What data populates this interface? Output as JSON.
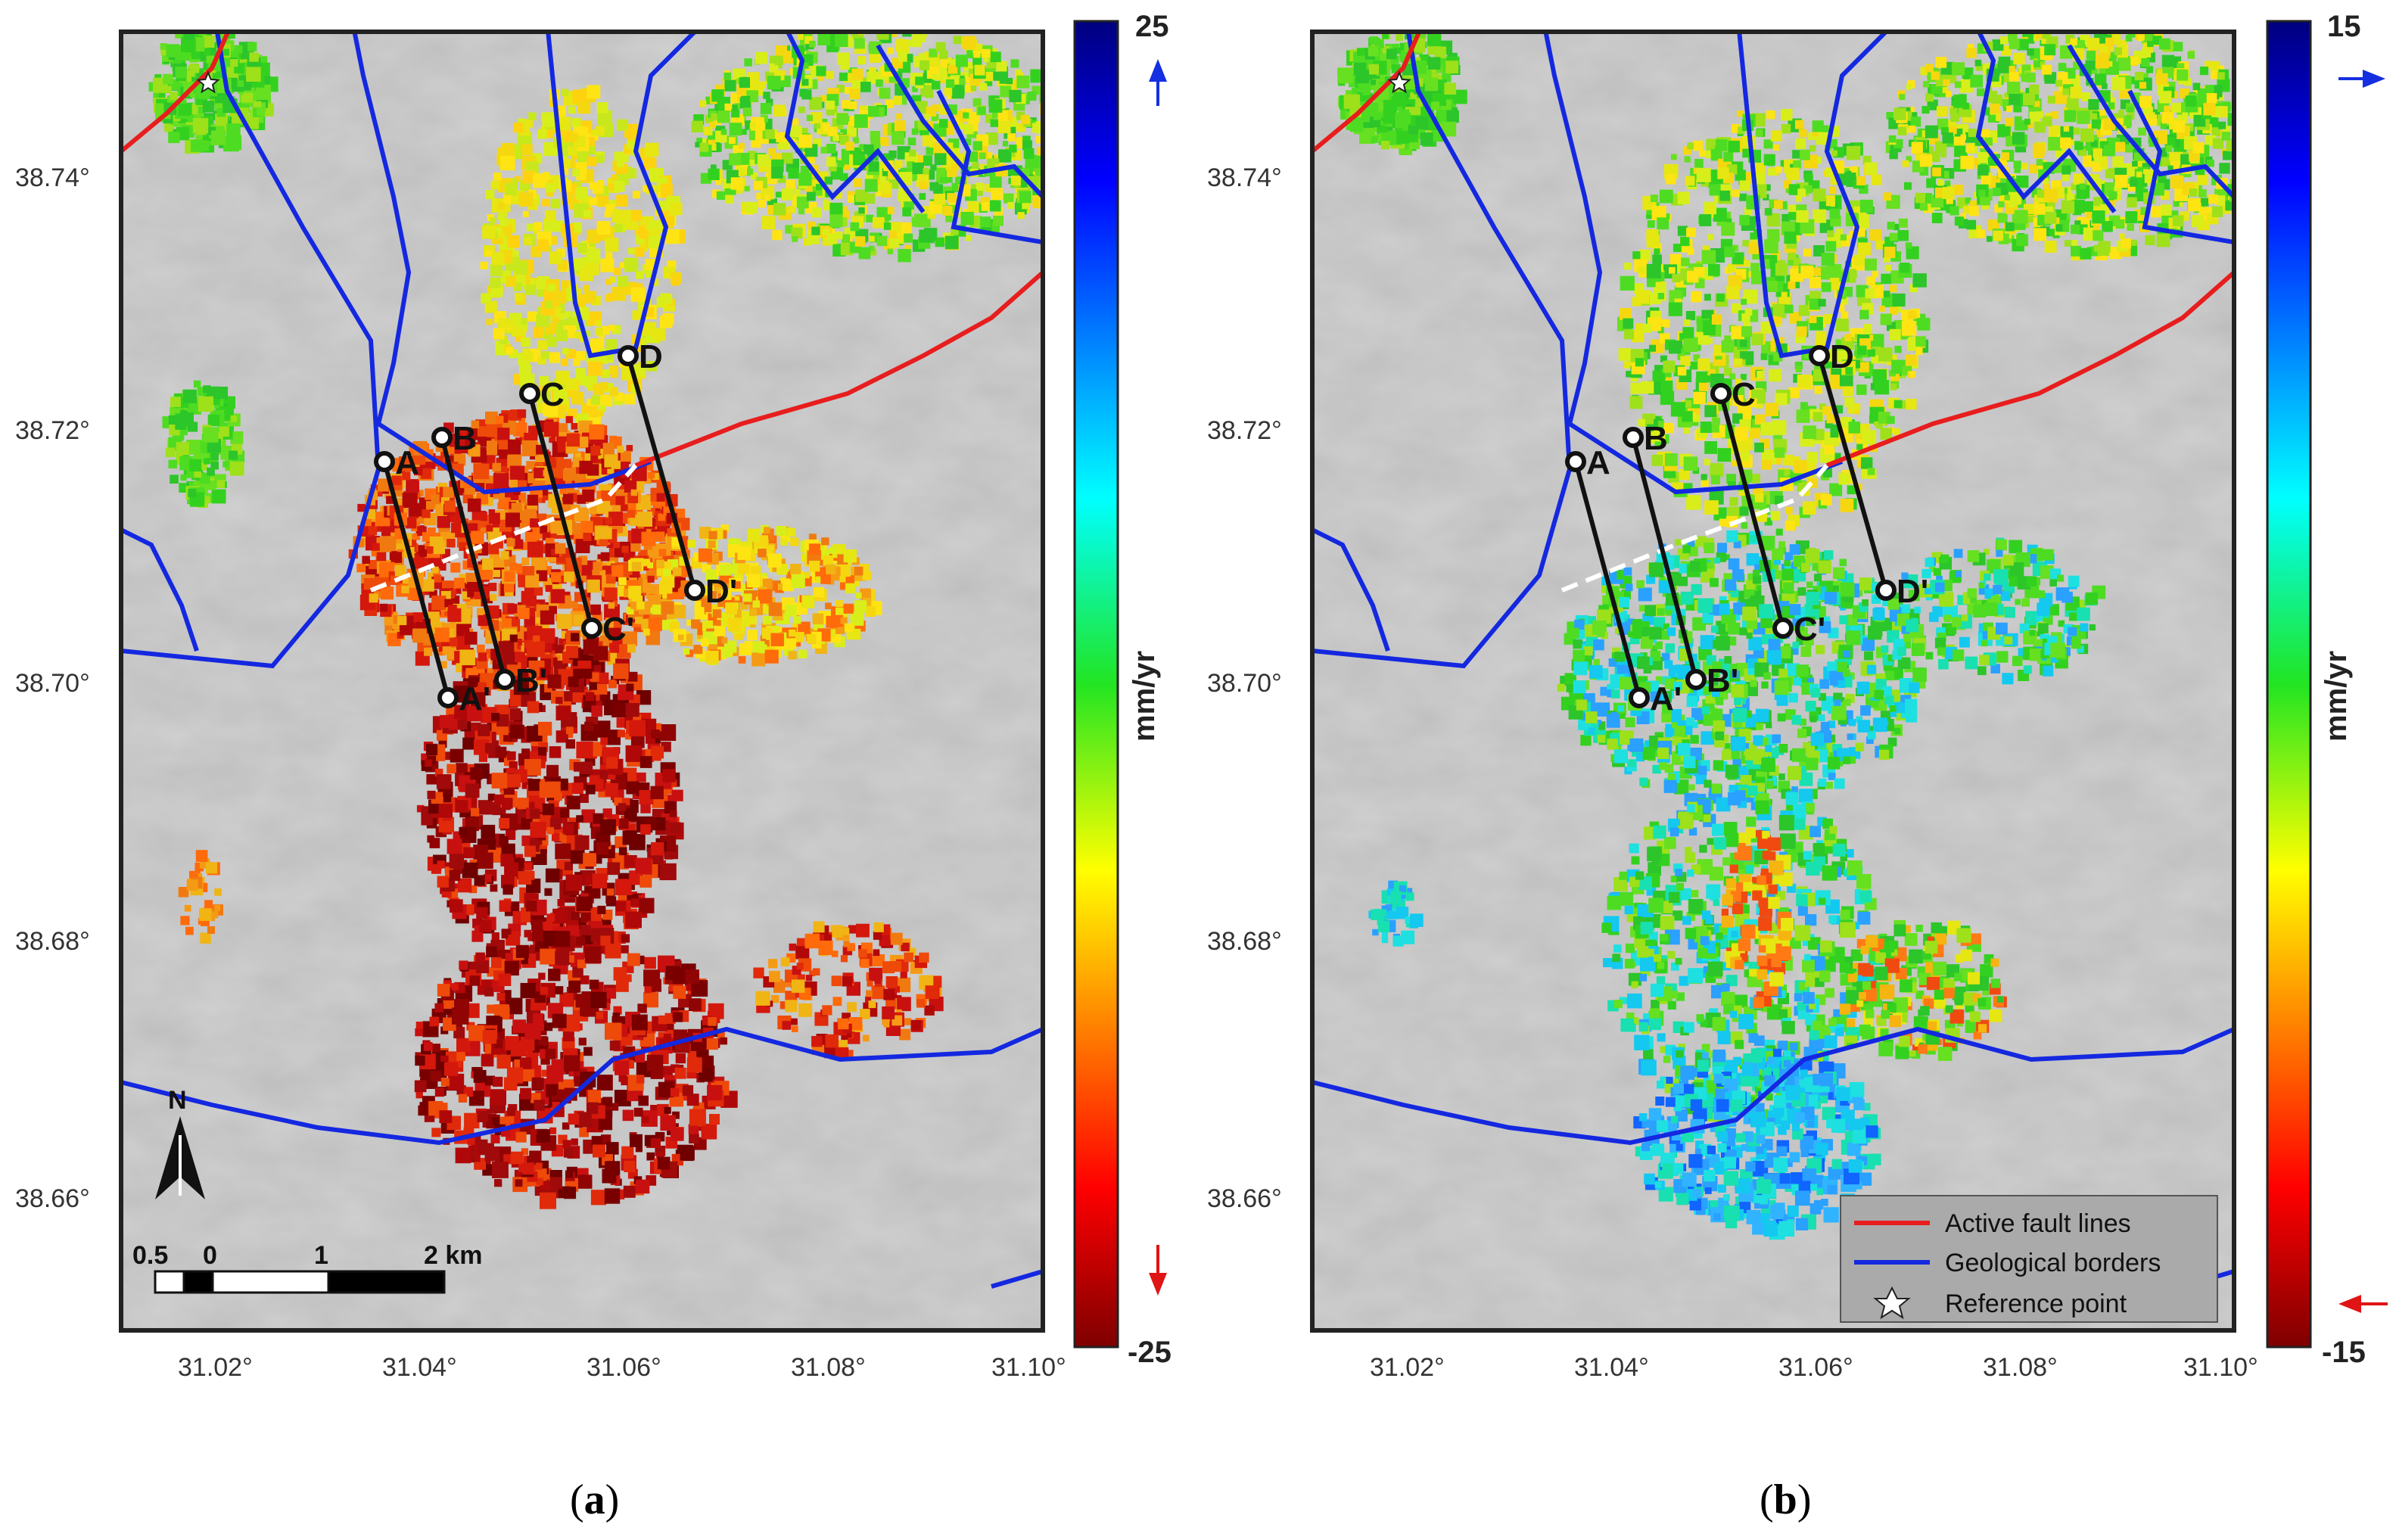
{
  "panels": [
    {
      "id": "a",
      "label_open": "(",
      "label_letter": "a",
      "label_close": ")",
      "colorbar": {
        "max_label": "25",
        "min_label": "-25",
        "unit": "mm/yr",
        "top_arrow_color": "#1430e0",
        "bottom_arrow_color": "#e01414"
      },
      "has_scale_bar": true,
      "has_legend": false,
      "has_north_arrow": true
    },
    {
      "id": "b",
      "label_open": "(",
      "label_letter": "b",
      "label_close": ")",
      "colorbar": {
        "max_label": "15",
        "min_label": "-15",
        "unit": "mm/yr",
        "top_arrow_color": "#1430e0",
        "bottom_arrow_color": "#e01414"
      },
      "has_scale_bar": false,
      "has_legend": true,
      "has_north_arrow": false
    }
  ],
  "axes": {
    "x_ticks": [
      "31.02°",
      "31.04°",
      "31.06°",
      "31.08°",
      "31.10°"
    ],
    "y_ticks": [
      "38.74°",
      "38.72°",
      "38.70°",
      "38.68°",
      "38.66°"
    ]
  },
  "profile_points": [
    {
      "id": "A",
      "label": "A"
    },
    {
      "id": "A2",
      "label": "A'"
    },
    {
      "id": "B",
      "label": "B"
    },
    {
      "id": "B2",
      "label": "B'"
    },
    {
      "id": "C",
      "label": "C"
    },
    {
      "id": "C2",
      "label": "C'"
    },
    {
      "id": "D",
      "label": "D"
    },
    {
      "id": "D2",
      "label": "D'"
    }
  ],
  "scale_bar": {
    "labels": [
      "0.5",
      "0",
      "1",
      "2 km"
    ]
  },
  "north_arrow": {
    "label": "N"
  },
  "legend": {
    "items": [
      {
        "label": "Active fault lines",
        "color": "#e81d1d",
        "symbol": "line"
      },
      {
        "label": "Geological borders",
        "color": "#1428e0",
        "symbol": "line"
      },
      {
        "label": "Reference point",
        "color": "#ffffff",
        "symbol": "star"
      }
    ]
  },
  "colors": {
    "fault": "#e81d1d",
    "geology": "#1428e0",
    "hillshade": "#bcbcbc",
    "frame": "#222222"
  }
}
